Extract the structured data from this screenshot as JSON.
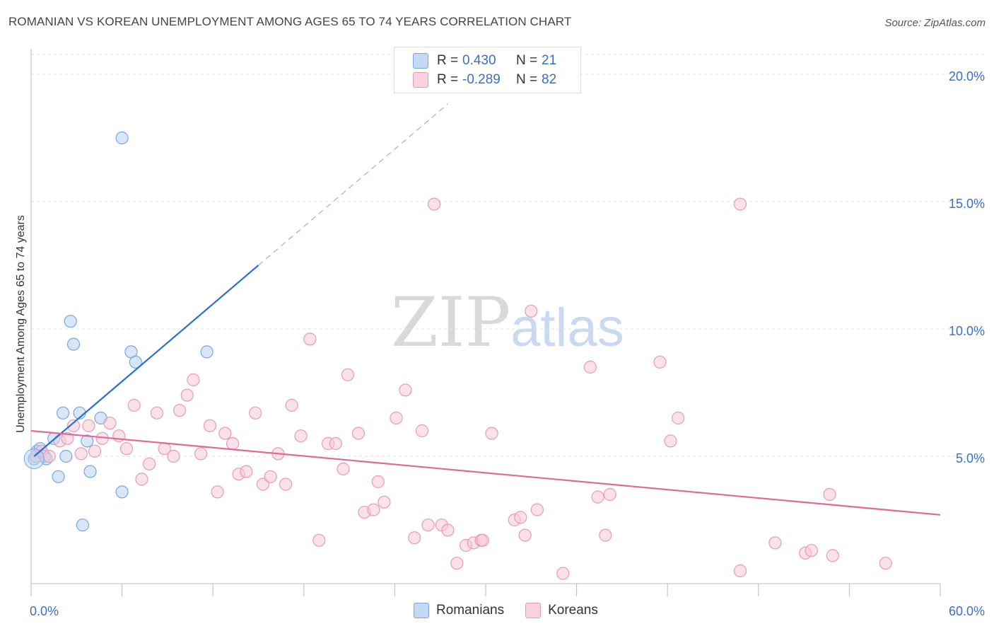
{
  "title": "ROMANIAN VS KOREAN UNEMPLOYMENT AMONG AGES 65 TO 74 YEARS CORRELATION CHART",
  "source": "Source: ZipAtlas.com",
  "watermark": {
    "zip": "ZIP",
    "atlas": "atlas"
  },
  "legend": {
    "rows": [
      {
        "r_label": "R =",
        "r_value": "0.430",
        "n_label": "N =",
        "n_value": "21",
        "color": "#a8c8f0",
        "border": "#7aa6e0"
      },
      {
        "r_label": "R =",
        "r_value": "-0.289",
        "n_label": "N =",
        "n_value": "82",
        "color": "#f8c0d0",
        "border": "#e89ab4"
      }
    ]
  },
  "bottom_legend": [
    {
      "label": "Romanians",
      "color": "#a8c8f0",
      "border": "#7aa6e0"
    },
    {
      "label": "Koreans",
      "color": "#f8c0d0",
      "border": "#e89ab4"
    }
  ],
  "chart_data": {
    "type": "scatter",
    "title": "ROMANIAN VS KOREAN UNEMPLOYMENT AMONG AGES 65 TO 74 YEARS CORRELATION CHART",
    "xlabel": "",
    "ylabel": "Unemployment Among Ages 65 to 74 years",
    "xlim": [
      0,
      60
    ],
    "ylim": [
      0,
      21
    ],
    "x_tick_labels": [
      "0.0%",
      "60.0%"
    ],
    "y_ticks": [
      5,
      10,
      15,
      20
    ],
    "y_tick_labels": [
      "5.0%",
      "10.0%",
      "15.0%",
      "20.0%"
    ],
    "grid": true,
    "series": [
      {
        "name": "Romanians",
        "color": "#7aa6e0",
        "fill": "#b8d2f2",
        "line_color": "#2a6fd0",
        "trend": {
          "x0": 0.2,
          "y0": 5.0,
          "x1": 15.0,
          "y1": 12.5,
          "dash_to_x": 27.5
        },
        "points": [
          [
            0.2,
            4.9
          ],
          [
            0.4,
            5.2
          ],
          [
            0.6,
            5.3
          ],
          [
            0.9,
            5.0
          ],
          [
            1.0,
            4.9
          ],
          [
            1.5,
            5.7
          ],
          [
            1.8,
            4.2
          ],
          [
            2.1,
            6.7
          ],
          [
            2.3,
            5.0
          ],
          [
            2.6,
            10.3
          ],
          [
            2.8,
            9.4
          ],
          [
            3.2,
            6.7
          ],
          [
            3.7,
            5.6
          ],
          [
            3.9,
            4.4
          ],
          [
            4.6,
            6.5
          ],
          [
            6.0,
            3.6
          ],
          [
            6.0,
            17.5
          ],
          [
            6.6,
            9.1
          ],
          [
            6.9,
            8.7
          ],
          [
            3.4,
            2.3
          ],
          [
            11.6,
            9.1
          ]
        ]
      },
      {
        "name": "Koreans",
        "color": "#e89ab4",
        "fill": "#f8c8d6",
        "line_color": "#e06a94",
        "trend": {
          "x0": 0,
          "y0": 6.0,
          "x1": 60,
          "y1": 2.7
        },
        "points": [
          [
            0.3,
            5.0
          ],
          [
            0.7,
            5.2
          ],
          [
            1.2,
            5.0
          ],
          [
            1.9,
            5.6
          ],
          [
            2.4,
            5.7
          ],
          [
            2.8,
            6.2
          ],
          [
            3.3,
            5.1
          ],
          [
            3.8,
            6.2
          ],
          [
            4.2,
            5.2
          ],
          [
            4.7,
            5.7
          ],
          [
            5.2,
            6.3
          ],
          [
            5.8,
            5.8
          ],
          [
            6.3,
            5.3
          ],
          [
            6.8,
            7.0
          ],
          [
            7.3,
            4.1
          ],
          [
            7.8,
            4.7
          ],
          [
            8.3,
            6.7
          ],
          [
            8.8,
            5.3
          ],
          [
            9.4,
            5.0
          ],
          [
            9.8,
            6.8
          ],
          [
            10.3,
            7.4
          ],
          [
            10.7,
            8.0
          ],
          [
            11.2,
            5.1
          ],
          [
            11.8,
            6.2
          ],
          [
            12.3,
            3.6
          ],
          [
            12.8,
            5.9
          ],
          [
            13.3,
            5.5
          ],
          [
            13.7,
            4.3
          ],
          [
            14.2,
            4.4
          ],
          [
            14.8,
            6.7
          ],
          [
            15.3,
            3.9
          ],
          [
            15.8,
            4.2
          ],
          [
            16.3,
            5.1
          ],
          [
            16.8,
            3.9
          ],
          [
            17.2,
            7.0
          ],
          [
            17.8,
            5.8
          ],
          [
            18.4,
            9.6
          ],
          [
            19.0,
            1.7
          ],
          [
            19.6,
            5.5
          ],
          [
            20.1,
            5.5
          ],
          [
            20.6,
            4.5
          ],
          [
            20.9,
            8.2
          ],
          [
            21.6,
            5.9
          ],
          [
            22.0,
            2.8
          ],
          [
            22.6,
            2.9
          ],
          [
            22.9,
            4.0
          ],
          [
            23.3,
            3.2
          ],
          [
            24.1,
            6.5
          ],
          [
            24.7,
            7.6
          ],
          [
            25.3,
            1.8
          ],
          [
            25.8,
            6.0
          ],
          [
            26.2,
            2.3
          ],
          [
            26.6,
            14.9
          ],
          [
            27.1,
            2.3
          ],
          [
            27.5,
            2.1
          ],
          [
            28.1,
            0.8
          ],
          [
            28.7,
            1.5
          ],
          [
            29.2,
            1.6
          ],
          [
            29.7,
            1.7
          ],
          [
            29.8,
            1.7
          ],
          [
            30.4,
            5.9
          ],
          [
            31.9,
            2.5
          ],
          [
            32.3,
            2.6
          ],
          [
            32.6,
            1.9
          ],
          [
            33.4,
            2.9
          ],
          [
            33.0,
            10.7
          ],
          [
            35.1,
            0.4
          ],
          [
            36.9,
            8.5
          ],
          [
            37.4,
            3.4
          ],
          [
            37.9,
            1.9
          ],
          [
            38.2,
            3.5
          ],
          [
            41.5,
            8.7
          ],
          [
            42.2,
            5.6
          ],
          [
            42.7,
            6.5
          ],
          [
            46.8,
            14.9
          ],
          [
            46.8,
            0.5
          ],
          [
            49.1,
            1.6
          ],
          [
            51.1,
            1.2
          ],
          [
            51.5,
            1.3
          ],
          [
            52.7,
            3.5
          ],
          [
            52.9,
            1.1
          ],
          [
            56.4,
            0.8
          ]
        ]
      }
    ]
  }
}
